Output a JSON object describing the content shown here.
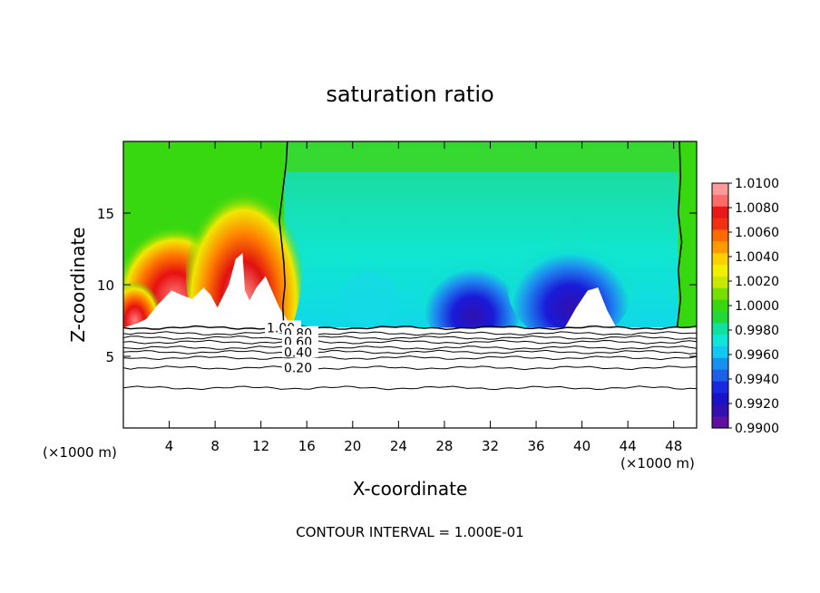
{
  "chart_data": {
    "type": "heatmap",
    "title": "saturation ratio",
    "xlabel": "X-coordinate",
    "ylabel": "Z-coordinate",
    "x_unit_label": "(×1000 m)",
    "y_unit_label": "(×1000 m)",
    "xlim": [
      0,
      50
    ],
    "ylim": [
      0,
      20
    ],
    "x_ticks": [
      4,
      8,
      12,
      16,
      20,
      24,
      28,
      32,
      36,
      40,
      44,
      48
    ],
    "x_tick_labels": [
      "4",
      "8",
      "12",
      "16",
      "20",
      "24",
      "28",
      "32",
      "36",
      "40",
      "44",
      "48"
    ],
    "y_ticks": [
      5,
      10,
      15
    ],
    "y_tick_labels": [
      "5",
      "10",
      "15"
    ],
    "colorbar": {
      "min": 0.99,
      "max": 1.01,
      "tick_values": [
        1.01,
        1.008,
        1.006,
        1.004,
        1.002,
        1.0,
        0.998,
        0.996,
        0.994,
        0.992,
        0.99
      ],
      "tick_labels": [
        "1.0100",
        "1.0080",
        "1.0060",
        "1.0040",
        "1.0020",
        "1.0000",
        "0.9980",
        "0.9960",
        "0.9940",
        "0.9920",
        "0.9900"
      ]
    },
    "contour_labels": [
      {
        "text": "1.00",
        "x": 12.5,
        "z": 7.0
      },
      {
        "text": "0.80",
        "x": 14.0,
        "z": 6.6
      },
      {
        "text": "0.60",
        "x": 14.0,
        "z": 6.0
      },
      {
        "text": "0.40",
        "x": 14.0,
        "z": 5.3
      },
      {
        "text": "0.20",
        "x": 14.0,
        "z": 4.2
      }
    ],
    "contour_levels_z": [
      7.0,
      6.6,
      6.3,
      6.0,
      5.6,
      5.3,
      4.9,
      4.2,
      2.8
    ],
    "terrain_base_z": 7.0,
    "saturation_contour_1_x": [
      14.0,
      13.9,
      14.1,
      14.0,
      13.8,
      13.6,
      13.9,
      14.2,
      14.3
    ],
    "saturation_contour_1_z": [
      7.0,
      8.5,
      10.0,
      11.5,
      13.0,
      14.5,
      16.5,
      18.5,
      20.0
    ],
    "saturation_contour_2_x": [
      48.3,
      48.6,
      48.4,
      48.7,
      48.4,
      48.6,
      48.5
    ],
    "saturation_contour_2_z": [
      7.0,
      9.0,
      11.0,
      13.0,
      15.0,
      17.5,
      20.0
    ],
    "footer": "CONTOUR INTERVAL = 1.000E-01"
  }
}
